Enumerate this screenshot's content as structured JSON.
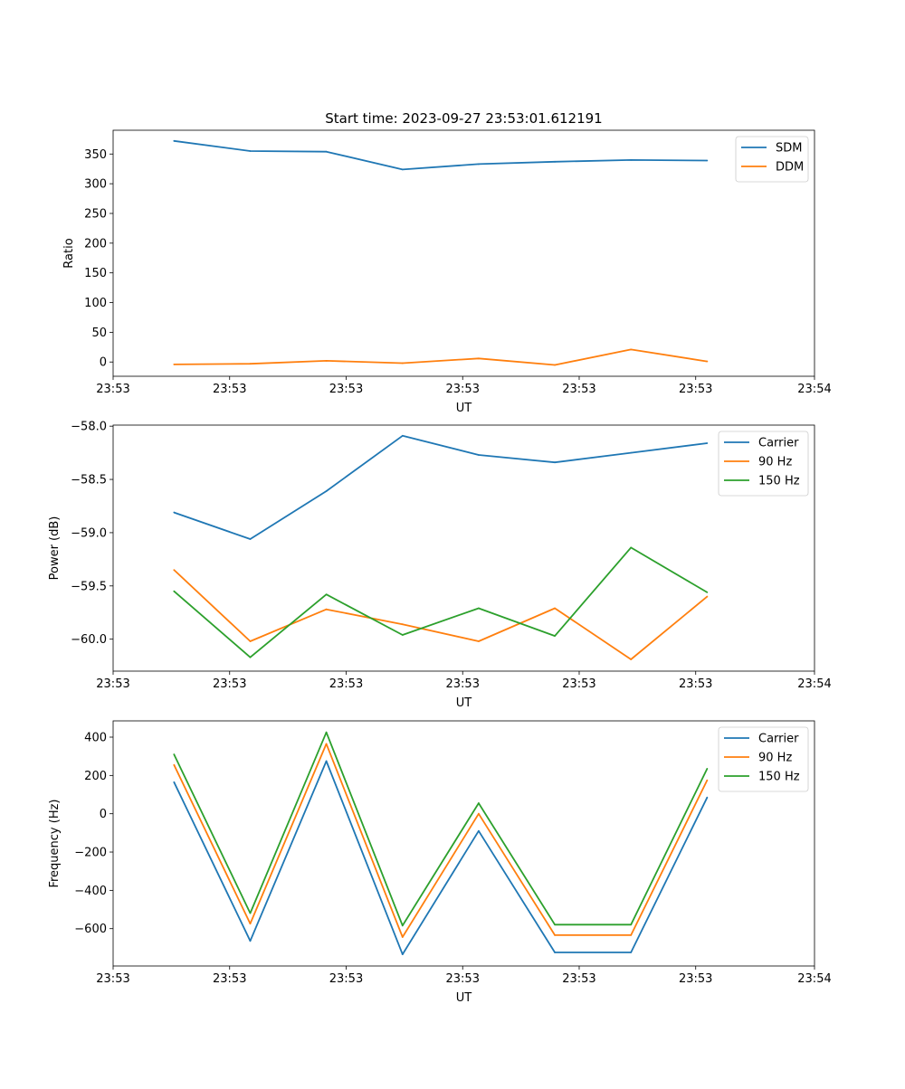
{
  "title": "Start time: 2023-09-27 23:53:01.612191",
  "chart_data": [
    {
      "type": "line",
      "ylabel": "Ratio",
      "xlabel": "UT",
      "x": [
        1,
        2,
        3,
        4,
        5,
        6,
        7,
        8
      ],
      "xlim": [
        0.2,
        9.41
      ],
      "xticks": [
        {
          "v": 0.2,
          "label": "23:53"
        },
        {
          "v": 1.73,
          "label": "23:53"
        },
        {
          "v": 3.26,
          "label": "23:53"
        },
        {
          "v": 4.79,
          "label": "23:53"
        },
        {
          "v": 6.32,
          "label": "23:53"
        },
        {
          "v": 7.85,
          "label": "23:53"
        },
        {
          "v": 9.41,
          "label": "23:54"
        }
      ],
      "ylim": [
        -24,
        390
      ],
      "yticks": [
        0,
        50,
        100,
        150,
        200,
        250,
        300,
        350
      ],
      "legend": "upper-right",
      "series": [
        {
          "name": "SDM",
          "color": "#1f77b4",
          "values": [
            372,
            355,
            354,
            324,
            333,
            337,
            340,
            339
          ]
        },
        {
          "name": "DDM",
          "color": "#ff7f0e",
          "values": [
            -4,
            -3,
            2,
            -2,
            6,
            -5,
            21,
            1
          ]
        }
      ]
    },
    {
      "type": "line",
      "ylabel": "Power (dB)",
      "xlabel": "UT",
      "x": [
        1,
        2,
        3,
        4,
        5,
        6,
        7,
        8
      ],
      "xlim": [
        0.2,
        9.41
      ],
      "xticks": [
        {
          "v": 0.2,
          "label": "23:53"
        },
        {
          "v": 1.73,
          "label": "23:53"
        },
        {
          "v": 3.26,
          "label": "23:53"
        },
        {
          "v": 4.79,
          "label": "23:53"
        },
        {
          "v": 6.32,
          "label": "23:53"
        },
        {
          "v": 7.85,
          "label": "23:53"
        },
        {
          "v": 9.41,
          "label": "23:54"
        }
      ],
      "ylim": [
        -60.3,
        -57.99
      ],
      "yticks": [
        -60.0,
        -59.5,
        -59.0,
        -58.5,
        -58.0
      ],
      "ytick_labels": [
        "−60.0",
        "−59.5",
        "−59.0",
        "−58.5",
        "−58.0"
      ],
      "legend": "upper-right",
      "series": [
        {
          "name": "Carrier",
          "color": "#1f77b4",
          "values": [
            -58.81,
            -59.06,
            -58.61,
            -58.09,
            -58.27,
            -58.34,
            -58.25,
            -58.16
          ]
        },
        {
          "name": "90 Hz",
          "color": "#ff7f0e",
          "values": [
            -59.35,
            -60.02,
            -59.72,
            -59.86,
            -60.02,
            -59.71,
            -60.19,
            -59.6
          ]
        },
        {
          "name": "150 Hz",
          "color": "#2ca02c",
          "values": [
            -59.55,
            -60.17,
            -59.58,
            -59.96,
            -59.71,
            -59.97,
            -59.14,
            -59.56
          ]
        }
      ]
    },
    {
      "type": "line",
      "ylabel": "Frequency (Hz)",
      "xlabel": "UT",
      "x": [
        1,
        2,
        3,
        4,
        5,
        6,
        7,
        8
      ],
      "xlim": [
        0.2,
        9.41
      ],
      "xticks": [
        {
          "v": 0.2,
          "label": "23:53"
        },
        {
          "v": 1.73,
          "label": "23:53"
        },
        {
          "v": 3.26,
          "label": "23:53"
        },
        {
          "v": 4.79,
          "label": "23:53"
        },
        {
          "v": 6.32,
          "label": "23:53"
        },
        {
          "v": 7.85,
          "label": "23:53"
        },
        {
          "v": 9.41,
          "label": "23:54"
        }
      ],
      "ylim": [
        -795,
        485
      ],
      "yticks": [
        -600,
        -400,
        -200,
        0,
        200,
        400
      ],
      "ytick_labels": [
        "−600",
        "−400",
        "−200",
        "0",
        "200",
        "400"
      ],
      "legend": "upper-right",
      "series": [
        {
          "name": "Carrier",
          "color": "#1f77b4",
          "values": [
            165,
            -664,
            275,
            -734,
            -90,
            -724,
            -724,
            85
          ]
        },
        {
          "name": "90 Hz",
          "color": "#ff7f0e",
          "values": [
            255,
            -574,
            365,
            -644,
            0,
            -634,
            -634,
            175
          ]
        },
        {
          "name": "150 Hz",
          "color": "#2ca02c",
          "values": [
            310,
            -519,
            425,
            -584,
            55,
            -579,
            -579,
            235
          ]
        }
      ]
    }
  ]
}
